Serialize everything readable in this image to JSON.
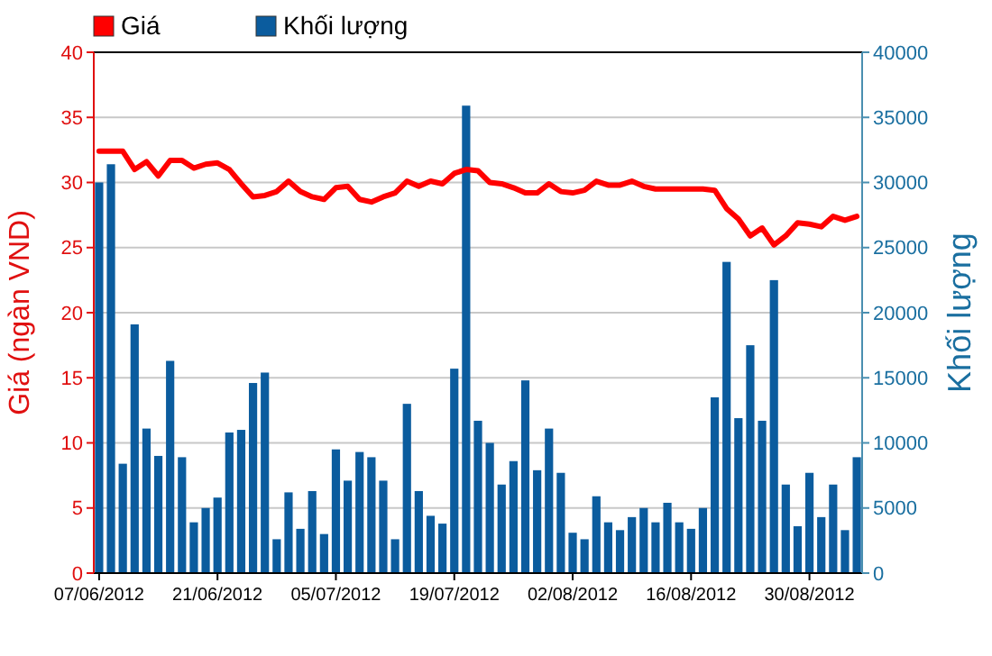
{
  "chart_data": {
    "type": "bar",
    "ylabel": "Giá (ngàn VND)",
    "y2label": "Khối lượng",
    "categories": [
      "07/06/2012",
      null,
      null,
      null,
      null,
      null,
      null,
      null,
      null,
      null,
      "21/06/2012",
      null,
      null,
      null,
      null,
      null,
      null,
      null,
      null,
      null,
      "05/07/2012",
      null,
      null,
      null,
      null,
      null,
      null,
      null,
      null,
      null,
      "19/07/2012",
      null,
      null,
      null,
      null,
      null,
      null,
      null,
      null,
      null,
      "02/08/2012",
      null,
      null,
      null,
      null,
      null,
      null,
      null,
      null,
      null,
      "16/08/2012",
      null,
      null,
      null,
      null,
      null,
      null,
      null,
      null,
      null,
      "30/08/2012",
      null,
      null,
      null,
      null
    ],
    "series": [
      {
        "name": "Giá",
        "type": "line",
        "color": "#ff0000",
        "values": [
          32.4,
          32.4,
          32.4,
          31.0,
          31.6,
          30.5,
          31.7,
          31.7,
          31.1,
          31.4,
          31.5,
          31.0,
          29.9,
          28.9,
          29.0,
          29.3,
          30.1,
          29.3,
          28.9,
          28.7,
          29.6,
          29.7,
          28.7,
          28.5,
          28.9,
          29.2,
          30.1,
          29.7,
          30.1,
          29.9,
          30.7,
          31.0,
          30.9,
          30.0,
          29.9,
          29.6,
          29.2,
          29.2,
          29.9,
          29.3,
          29.2,
          29.4,
          30.1,
          29.8,
          29.8,
          30.1,
          29.7,
          29.5,
          29.5,
          29.5,
          29.5,
          29.5,
          29.4,
          28.0,
          27.2,
          25.9,
          26.5,
          25.2,
          25.9,
          26.9,
          26.8,
          26.6,
          27.4,
          27.1,
          27.4
        ]
      },
      {
        "name": "Khối lượng",
        "axis": "y2",
        "color": "#0b5c9e",
        "values": [
          30000,
          31400,
          8400,
          19100,
          11100,
          9000,
          16300,
          8900,
          3900,
          5000,
          5800,
          10800,
          11000,
          14600,
          15400,
          2600,
          6200,
          3400,
          6300,
          3000,
          9500,
          7100,
          9300,
          8900,
          7100,
          2600,
          13000,
          6300,
          4400,
          3800,
          15700,
          35900,
          11700,
          10000,
          6800,
          8600,
          14800,
          7900,
          11100,
          7700,
          3100,
          2600,
          5900,
          3900,
          3300,
          4300,
          5000,
          3900,
          5400,
          3900,
          3400,
          5000,
          13500,
          23900,
          11900,
          17500,
          11700,
          22500,
          6800,
          3600,
          7700,
          4300,
          6800,
          3300,
          8900
        ]
      }
    ],
    "ylim": [
      0,
      40
    ],
    "yticks": [
      0,
      5,
      10,
      15,
      20,
      25,
      30,
      35,
      40
    ],
    "y2lim": [
      0,
      40000
    ],
    "y2ticks": [
      0,
      5000,
      10000,
      15000,
      20000,
      25000,
      30000,
      35000,
      40000
    ],
    "grid": "y",
    "legend": "top left"
  }
}
